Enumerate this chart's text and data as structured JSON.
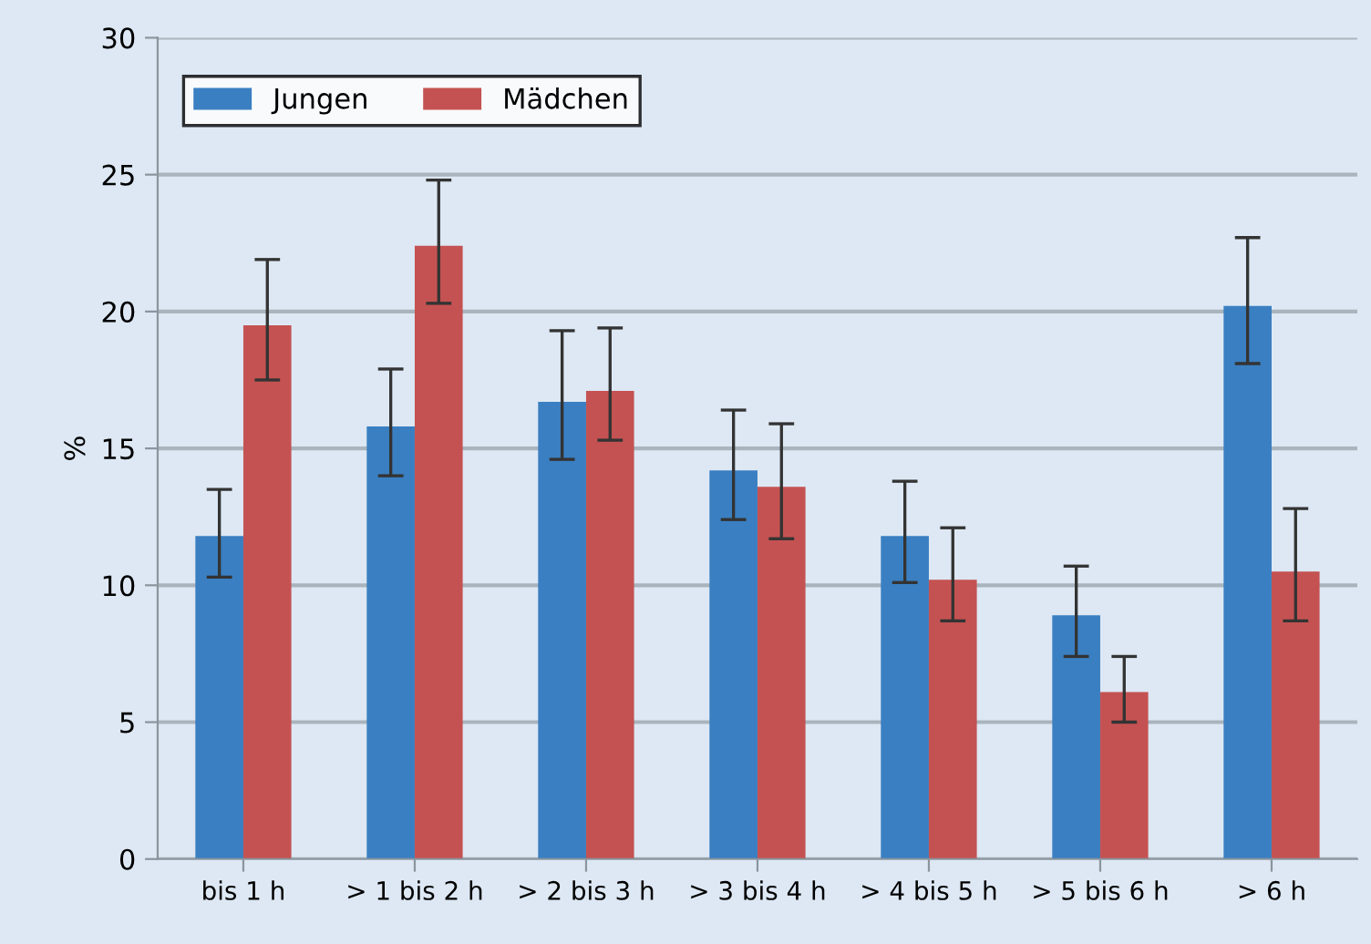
{
  "chart_data": {
    "type": "bar",
    "ylabel": "%",
    "categories": [
      "bis 1 h",
      "> 1 bis 2 h",
      "> 2 bis 3 h",
      "> 3 bis 4 h",
      "> 4 bis 5 h",
      "> 5 bis 6 h",
      "> 6 h"
    ],
    "series": [
      {
        "name": "Jungen",
        "color": "#3a7fc1",
        "values": [
          11.8,
          15.8,
          16.7,
          14.2,
          11.8,
          8.9,
          20.2
        ],
        "errors": [
          [
            10.3,
            13.5
          ],
          [
            14.0,
            17.9
          ],
          [
            14.6,
            19.3
          ],
          [
            12.4,
            16.4
          ],
          [
            10.1,
            13.8
          ],
          [
            7.4,
            10.7
          ],
          [
            18.1,
            22.7
          ]
        ]
      },
      {
        "name": "Mädchen",
        "color": "#c55252",
        "values": [
          19.5,
          22.4,
          17.1,
          13.6,
          10.2,
          6.1,
          10.5
        ],
        "errors": [
          [
            17.5,
            21.9
          ],
          [
            20.3,
            24.8
          ],
          [
            15.3,
            19.4
          ],
          [
            11.7,
            15.9
          ],
          [
            8.7,
            12.1
          ],
          [
            5.0,
            7.4
          ],
          [
            8.7,
            12.8
          ]
        ]
      }
    ],
    "ylim": [
      0,
      30
    ],
    "yticks": [
      0,
      5,
      10,
      15,
      20,
      25,
      30
    ],
    "grid": "y",
    "legend": "top left"
  }
}
